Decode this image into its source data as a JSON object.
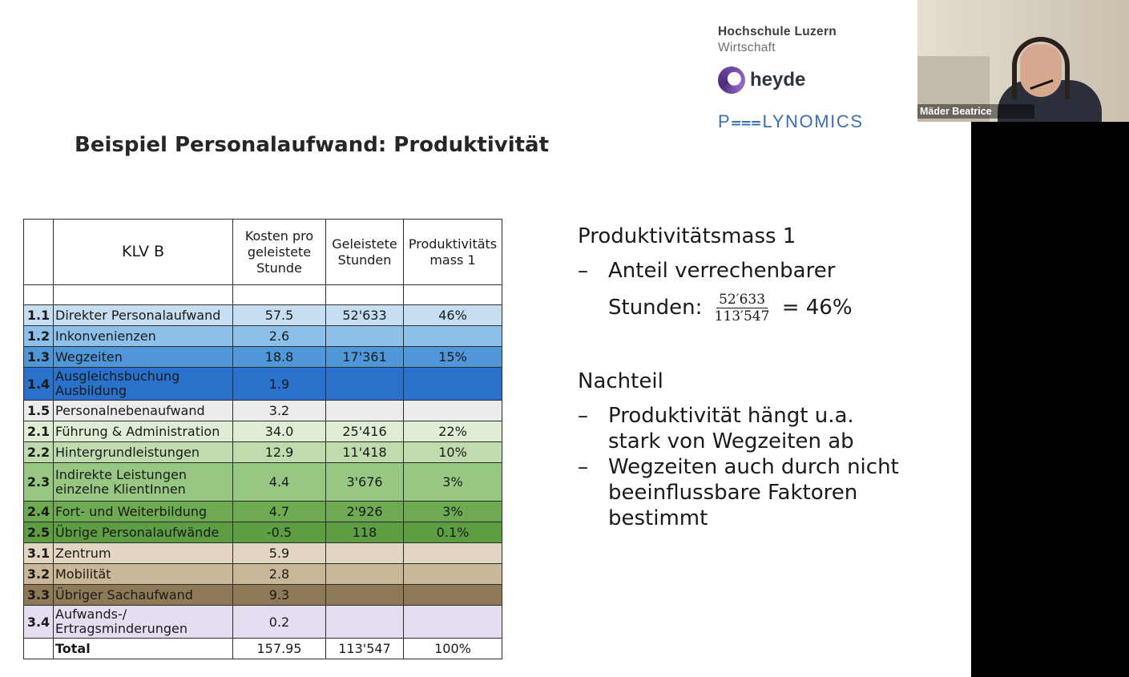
{
  "slide": {
    "title": "Beispiel Personalaufwand: Produktivität",
    "logos": {
      "hslu_line1": "Hochschule Luzern",
      "hslu_line2": "Wirtschaft",
      "heyde": "heyde",
      "polynomics": "P⩶LYNOMICS"
    },
    "table": {
      "header": {
        "col2": "KLV B",
        "col3": "Kosten pro geleistete Stunde",
        "col4": "Geleistete Stunden",
        "col5": "Produktivitäts mass 1"
      },
      "rows": [
        {
          "num": "1.1",
          "label": "Direkter Personalaufwand",
          "kosten": "57.5",
          "stunden": "52'633",
          "mass": "46%",
          "color": "#c5def2"
        },
        {
          "num": "1.2",
          "label": "Inkonvenienzen",
          "kosten": "2.6",
          "stunden": "",
          "mass": "",
          "color": "#8dc1ea"
        },
        {
          "num": "1.3",
          "label": "Wegzeiten",
          "kosten": "18.8",
          "stunden": "17'361",
          "mass": "15%",
          "color": "#4f97d9"
        },
        {
          "num": "1.4",
          "label": "Ausgleichsbuchung Ausbildung",
          "kosten": "1.9",
          "stunden": "",
          "mass": "",
          "color": "#2a71cc"
        },
        {
          "num": "1.5",
          "label": "Personalnebenaufwand",
          "kosten": "3.2",
          "stunden": "",
          "mass": "",
          "color": "#ececec"
        },
        {
          "num": "2.1",
          "label": "Führung & Administration",
          "kosten": "34.0",
          "stunden": "25'416",
          "mass": "22%",
          "color": "#e0edd5"
        },
        {
          "num": "2.2",
          "label": "Hintergrundleistungen",
          "kosten": "12.9",
          "stunden": "11'418",
          "mass": "10%",
          "color": "#c0dcae"
        },
        {
          "num": "2.3",
          "label": "Indirekte Leistungen einzelne KlientInnen",
          "kosten": "4.4",
          "stunden": "3'676",
          "mass": "3%",
          "color": "#98c784"
        },
        {
          "num": "2.4",
          "label": "Fort- und Weiterbildung",
          "kosten": "4.7",
          "stunden": "2'926",
          "mass": "3%",
          "color": "#6eaa52"
        },
        {
          "num": "2.5",
          "label": "Übrige Personalaufwände",
          "kosten": "-0.5",
          "stunden": "118",
          "mass": "0.1%",
          "color": "#5d9e42"
        },
        {
          "num": "3.1",
          "label": "Zentrum",
          "kosten": "5.9",
          "stunden": "",
          "mass": "",
          "color": "#e3d6c2"
        },
        {
          "num": "3.2",
          "label": "Mobilität",
          "kosten": "2.8",
          "stunden": "",
          "mass": "",
          "color": "#c9b797"
        },
        {
          "num": "3.3",
          "label": "Übriger Sachaufwand",
          "kosten": "9.3",
          "stunden": "",
          "mass": "",
          "color": "#8f7a57"
        },
        {
          "num": "3.4",
          "label": "Aufwands-/ Ertragsminderungen",
          "kosten": "0.2",
          "stunden": "",
          "mass": "",
          "color": "#e6def0"
        }
      ],
      "total": {
        "label": "Total",
        "kosten": "157.95",
        "stunden": "113'547",
        "mass": "100%"
      }
    },
    "right": {
      "heading1": "Produktivitätsmass 1",
      "bullet1_line1": "Anteil verrechenbarer",
      "bullet1_prefix": "Stunden:",
      "frac_num": "52′633",
      "frac_den": "113′547",
      "bullet1_suffix": "= 46%",
      "heading2": "Nachteil",
      "bullet2_line1": "Produktivität hängt u.a.",
      "bullet2_line2": "stark von Wegzeiten ab",
      "bullet3_line1": "Wegzeiten auch durch nicht",
      "bullet3_line2": "beeinflussbare Faktoren",
      "bullet3_line3": "bestimmt",
      "dash": "–"
    }
  },
  "video": {
    "participant_name": "Mäder Beatrice"
  }
}
